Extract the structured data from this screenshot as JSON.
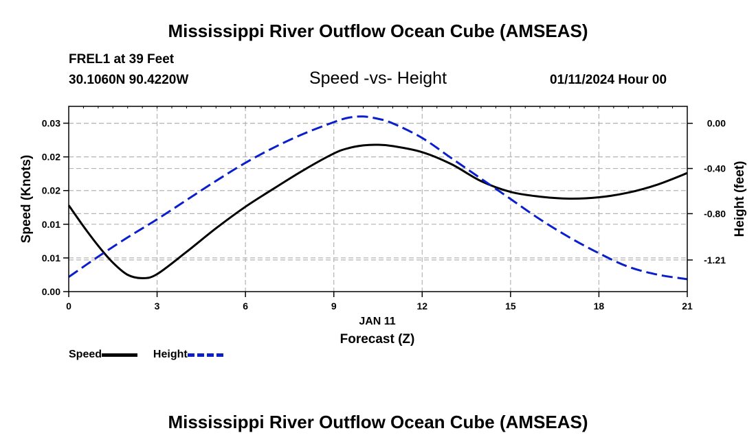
{
  "header": {
    "title": "Mississippi River Outflow Ocean Cube (AMSEAS)",
    "station": "FREL1 at 39 Feet",
    "coordinates": "30.1060N  90.4220W",
    "subtitle": "Speed -vs- Height",
    "datetime": "01/11/2024 Hour 00"
  },
  "footer": {
    "title": "Mississippi River Outflow Ocean Cube (AMSEAS)"
  },
  "legend": {
    "speed_label": "Speed",
    "height_label": "Height"
  },
  "colors": {
    "speed": "#000000",
    "height": "#0a1ecc",
    "grid": "#b4b4b4"
  },
  "chart_data": {
    "type": "line",
    "title": "Speed -vs- Height",
    "xlabel": "Forecast (Z)",
    "xlabel_date": "JAN 11",
    "ylabel_left": "Speed (Knots)",
    "ylabel_right": "Height (feet)",
    "xlim": [
      0,
      21
    ],
    "x_ticks": [
      0,
      3,
      6,
      9,
      12,
      15,
      18,
      21
    ],
    "y_left_lim": [
      0,
      0.0275
    ],
    "y_left_ticks": [
      {
        "value": 0,
        "label": "0.00"
      },
      {
        "value": 0.005,
        "label": "0.01"
      },
      {
        "value": 0.01,
        "label": "0.01"
      },
      {
        "value": 0.015,
        "label": "0.02"
      },
      {
        "value": 0.02,
        "label": "0.02"
      },
      {
        "value": 0.025,
        "label": "0.03"
      }
    ],
    "y_right_lim": [
      -1.49,
      0.15
    ],
    "y_right_ticks": [
      {
        "value": 0.0,
        "label": "0.00"
      },
      {
        "value": -0.4,
        "label": "-0.40"
      },
      {
        "value": -0.8,
        "label": "-0.80"
      },
      {
        "value": -1.21,
        "label": "-1.21"
      }
    ],
    "grid": true,
    "legend_position": "bottom-left",
    "series": [
      {
        "name": "Speed",
        "axis": "left",
        "style": "solid",
        "x": [
          0,
          0.5,
          1,
          1.5,
          2,
          2.5,
          3,
          4,
          5,
          6,
          7,
          8,
          9,
          9.5,
          10,
          10.5,
          11,
          12,
          13,
          14,
          15,
          16,
          17,
          18,
          19,
          20,
          21
        ],
        "values": [
          0.0128,
          0.0097,
          0.0068,
          0.0043,
          0.0025,
          0.002,
          0.0026,
          0.0059,
          0.0094,
          0.0126,
          0.0154,
          0.0181,
          0.0205,
          0.0213,
          0.0217,
          0.0218,
          0.0216,
          0.0207,
          0.0189,
          0.0164,
          0.0148,
          0.0141,
          0.0138,
          0.014,
          0.0147,
          0.0159,
          0.0176
        ]
      },
      {
        "name": "Height",
        "axis": "right",
        "style": "dashed",
        "x": [
          0,
          1,
          2,
          3,
          4,
          5,
          6,
          7,
          8,
          9,
          9.5,
          10,
          10.5,
          11,
          12,
          13,
          14,
          15,
          16,
          17,
          18,
          19,
          20,
          21
        ],
        "values": [
          -1.36,
          -1.18,
          -1.01,
          -0.85,
          -0.68,
          -0.51,
          -0.35,
          -0.21,
          -0.09,
          0.01,
          0.05,
          0.06,
          0.04,
          0.0,
          -0.13,
          -0.31,
          -0.49,
          -0.67,
          -0.85,
          -1.01,
          -1.15,
          -1.27,
          -1.34,
          -1.38
        ]
      }
    ]
  }
}
